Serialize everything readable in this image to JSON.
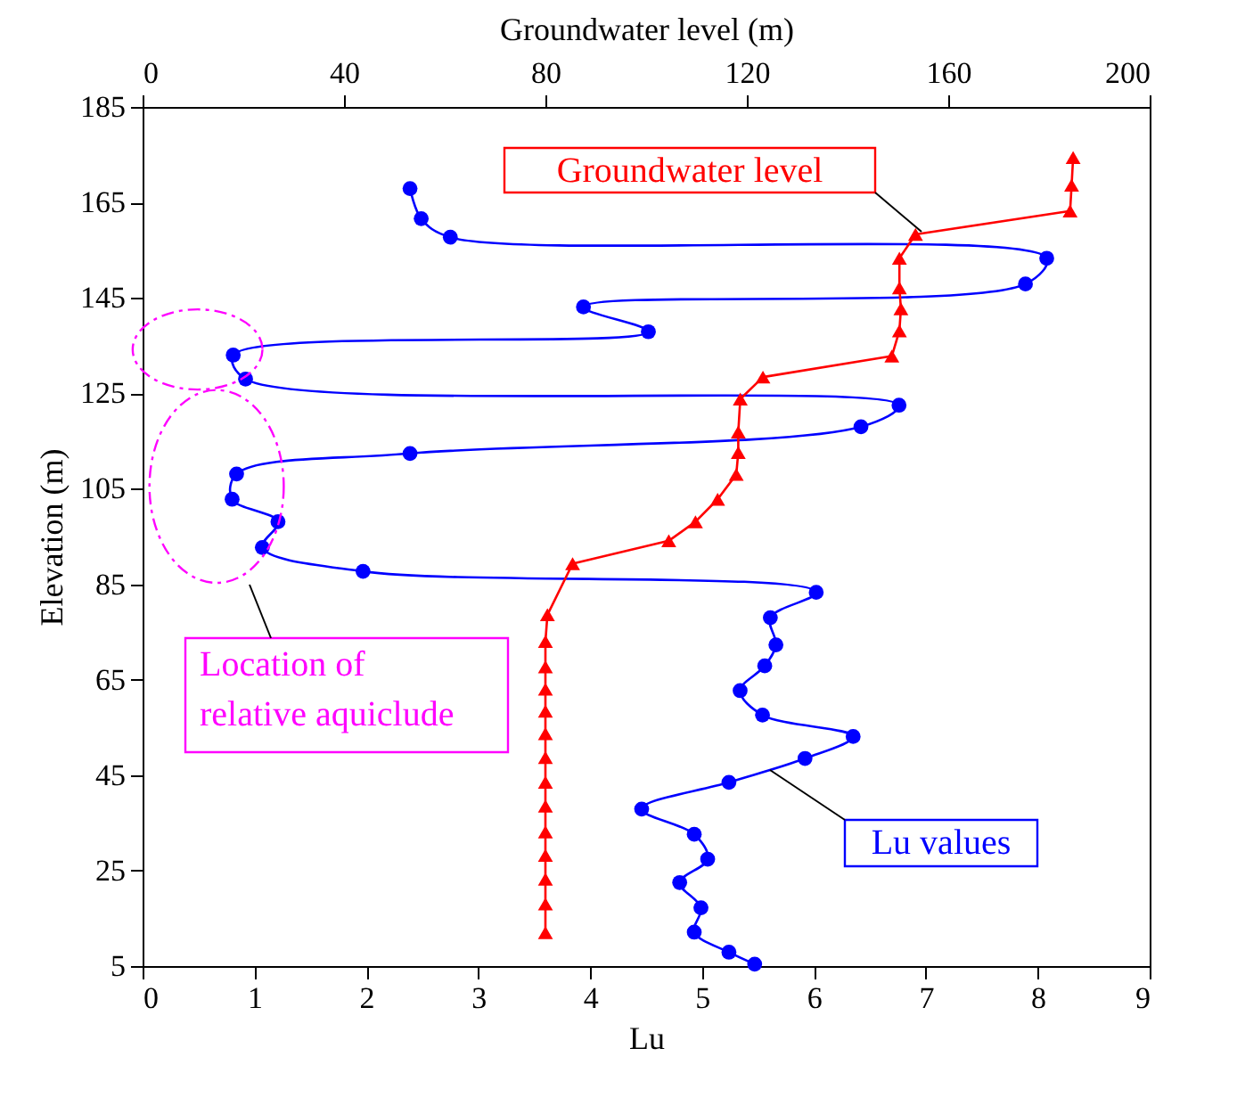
{
  "chart_data": {
    "type": "line",
    "xlabel": "Lu",
    "x2label": "Groundwater level (m)",
    "ylabel": "Elevation (m)",
    "xlim": [
      0,
      9
    ],
    "xticks": [
      0,
      1,
      2,
      3,
      4,
      5,
      6,
      7,
      8,
      9
    ],
    "x2lim": [
      0,
      200
    ],
    "x2ticks": [
      0,
      40,
      80,
      120,
      160,
      200
    ],
    "ylim": [
      5,
      185
    ],
    "yticks": [
      5,
      25,
      45,
      65,
      85,
      105,
      125,
      145,
      165,
      185
    ],
    "grid": false,
    "annotations": [
      "Location of\nrelative aquiclude"
    ],
    "series": [
      {
        "name": "Lu values",
        "color": "#0000ff",
        "marker": "circle",
        "x": [
          2.39,
          2.49,
          2.75,
          8.08,
          7.89,
          3.94,
          4.52,
          0.81,
          0.92,
          6.76,
          6.42,
          2.39,
          0.84,
          0.8,
          1.21,
          1.07,
          1.97,
          6.02,
          5.61,
          5.66,
          5.56,
          5.34,
          5.54,
          6.35,
          5.92,
          5.24,
          4.46,
          4.93,
          5.05,
          4.8,
          4.99,
          4.93,
          5.24,
          5.47
        ],
        "values": [
          167.9,
          161.6,
          157.7,
          153.3,
          147.9,
          143.1,
          137.9,
          133,
          128,
          122.5,
          118,
          112.4,
          108.1,
          102.8,
          98.1,
          92.7,
          87.7,
          83.3,
          78,
          72.3,
          67.9,
          62.7,
          57.6,
          53.1,
          48.5,
          43.5,
          37.9,
          32.6,
          27.4,
          22.5,
          17.2,
          12.1,
          7.9,
          5.4
        ]
      },
      {
        "name": "Groundwater level",
        "axis": "x2",
        "color": "#ff0000",
        "marker": "triangle",
        "x": [
          184.8,
          184.5,
          184.2,
          153.5,
          150.3,
          150.3,
          150.6,
          150.3,
          148.8,
          123.2,
          118.7,
          118.3,
          118.3,
          117.9,
          114.2,
          109.8,
          104.5,
          85.4,
          80.4,
          80,
          80,
          80,
          80,
          80,
          80,
          80,
          80,
          80,
          80,
          80,
          80,
          80
        ],
        "values": [
          174.4,
          168.6,
          163.2,
          158.3,
          153.3,
          147.1,
          142.7,
          138.1,
          132.8,
          128.4,
          123.8,
          116.9,
          112.6,
          108,
          102.8,
          98.1,
          94.1,
          89.3,
          78.6,
          73,
          67.7,
          63,
          58.4,
          53.7,
          48.7,
          43.5,
          38.5,
          33.1,
          28.2,
          23.2,
          18,
          12
        ]
      }
    ]
  }
}
